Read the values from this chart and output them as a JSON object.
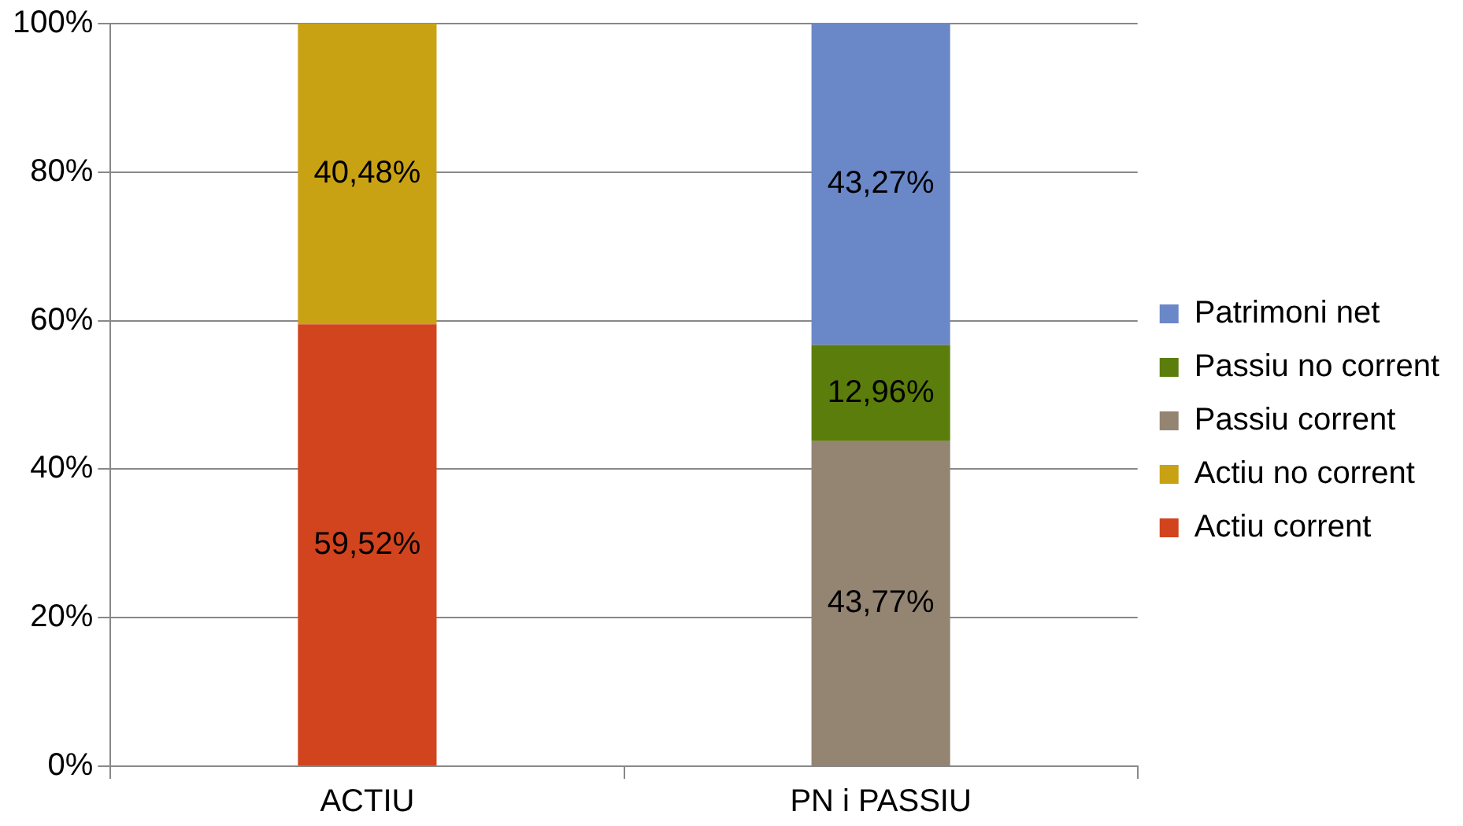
{
  "chart_data": {
    "type": "bar",
    "stacked": true,
    "categories": [
      "ACTIU",
      "PN i PASSIU"
    ],
    "series": [
      {
        "name": "Actiu corrent",
        "color": "#d2441e",
        "values": [
          59.52,
          null
        ],
        "value_labels": [
          "59,52%",
          null
        ]
      },
      {
        "name": "Actiu no corrent",
        "color": "#c9a214",
        "values": [
          40.48,
          null
        ],
        "value_labels": [
          "40,48%",
          null
        ]
      },
      {
        "name": "Passiu corrent",
        "color": "#948472",
        "values": [
          null,
          43.77
        ],
        "value_labels": [
          null,
          "43,77%"
        ]
      },
      {
        "name": "Passiu no corrent",
        "color": "#5b7d0b",
        "values": [
          null,
          12.96
        ],
        "value_labels": [
          null,
          "12,96%"
        ]
      },
      {
        "name": "Patrimoni net",
        "color": "#6a87c8",
        "values": [
          null,
          43.27
        ],
        "value_labels": [
          null,
          "43,27%"
        ]
      }
    ],
    "ylim": [
      0,
      100
    ],
    "yticks": [
      {
        "value": 0,
        "label": "0%"
      },
      {
        "value": 20,
        "label": "20%"
      },
      {
        "value": 40,
        "label": "40%"
      },
      {
        "value": 60,
        "label": "60%"
      },
      {
        "value": 80,
        "label": "80%"
      },
      {
        "value": 100,
        "label": "100%"
      }
    ],
    "grid": "y",
    "legend": "right"
  }
}
